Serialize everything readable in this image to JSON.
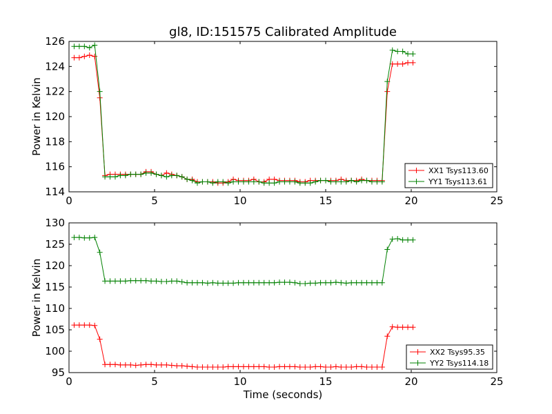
{
  "figure": {
    "title": "gl8, ID:151575 Calibrated Amplitude",
    "xlabel": "Time (seconds)"
  },
  "colors": {
    "XX": "#ff0000",
    "YY": "#008000"
  },
  "chart_data": [
    {
      "type": "line",
      "title": "gl8, ID:151575 Calibrated Amplitude",
      "xlabel": "",
      "ylabel": "Power in Kelvin",
      "xlim": [
        0,
        25
      ],
      "ylim": [
        114,
        126
      ],
      "xticks": [
        0,
        5,
        10,
        15,
        20,
        25
      ],
      "yticks": [
        114,
        116,
        118,
        120,
        122,
        124,
        126
      ],
      "grid": false,
      "legend_position": "lower-right",
      "series": [
        {
          "name": "XX1 Tsys113.60",
          "color": "#ff0000",
          "x": [
            0.3,
            0.6,
            0.9,
            1.2,
            1.5,
            1.8,
            2.1,
            2.4,
            2.7,
            3.0,
            3.3,
            3.6,
            3.9,
            4.2,
            4.5,
            4.8,
            5.1,
            5.4,
            5.7,
            6.0,
            6.3,
            6.6,
            6.9,
            7.2,
            7.5,
            7.8,
            8.1,
            8.4,
            8.7,
            9.0,
            9.3,
            9.6,
            9.9,
            10.2,
            10.5,
            10.8,
            11.1,
            11.4,
            11.7,
            12.0,
            12.3,
            12.6,
            12.9,
            13.2,
            13.5,
            13.8,
            14.1,
            14.4,
            14.7,
            15.0,
            15.3,
            15.6,
            15.9,
            16.2,
            16.5,
            16.8,
            17.1,
            17.4,
            17.7,
            18.0,
            18.3,
            18.6,
            18.9,
            19.2,
            19.5,
            19.8,
            20.1
          ],
          "y": [
            124.7,
            124.7,
            124.8,
            124.9,
            124.8,
            121.5,
            115.3,
            115.4,
            115.4,
            115.4,
            115.4,
            115.4,
            115.4,
            115.4,
            115.6,
            115.6,
            115.4,
            115.3,
            115.5,
            115.4,
            115.3,
            115.2,
            115.0,
            115.0,
            114.8,
            114.8,
            114.8,
            114.8,
            114.7,
            114.7,
            114.8,
            115.0,
            114.9,
            114.9,
            114.9,
            115.0,
            114.8,
            114.8,
            115.0,
            115.0,
            114.9,
            114.9,
            114.9,
            114.9,
            114.8,
            114.8,
            114.9,
            114.9,
            114.9,
            114.9,
            114.9,
            114.9,
            115.0,
            114.9,
            114.9,
            114.9,
            115.0,
            114.9,
            114.9,
            114.9,
            114.9,
            122.0,
            124.2,
            124.2,
            124.2,
            124.3,
            124.3
          ]
        },
        {
          "name": "YY1 Tsys113.61",
          "color": "#008000",
          "x": [
            0.3,
            0.6,
            0.9,
            1.2,
            1.5,
            1.8,
            2.1,
            2.4,
            2.7,
            3.0,
            3.3,
            3.6,
            3.9,
            4.2,
            4.5,
            4.8,
            5.1,
            5.4,
            5.7,
            6.0,
            6.3,
            6.6,
            6.9,
            7.2,
            7.5,
            7.8,
            8.1,
            8.4,
            8.7,
            9.0,
            9.3,
            9.6,
            9.9,
            10.2,
            10.5,
            10.8,
            11.1,
            11.4,
            11.7,
            12.0,
            12.3,
            12.6,
            12.9,
            13.2,
            13.5,
            13.8,
            14.1,
            14.4,
            14.7,
            15.0,
            15.3,
            15.6,
            15.9,
            16.2,
            16.5,
            16.8,
            17.1,
            17.4,
            17.7,
            18.0,
            18.3,
            18.6,
            18.9,
            19.2,
            19.5,
            19.8,
            20.1
          ],
          "y": [
            125.6,
            125.6,
            125.6,
            125.5,
            125.7,
            122.0,
            115.2,
            115.2,
            115.2,
            115.3,
            115.3,
            115.4,
            115.4,
            115.4,
            115.5,
            115.5,
            115.4,
            115.3,
            115.2,
            115.3,
            115.3,
            115.2,
            115.0,
            114.9,
            114.7,
            114.8,
            114.8,
            114.7,
            114.8,
            114.8,
            114.7,
            114.8,
            114.8,
            114.8,
            114.8,
            114.8,
            114.8,
            114.7,
            114.7,
            114.7,
            114.8,
            114.8,
            114.8,
            114.8,
            114.7,
            114.7,
            114.7,
            114.8,
            114.9,
            114.9,
            114.8,
            114.8,
            114.8,
            114.8,
            114.9,
            114.8,
            114.9,
            114.9,
            114.8,
            114.8,
            114.8,
            122.8,
            125.3,
            125.2,
            125.2,
            125.0,
            125.0
          ]
        }
      ]
    },
    {
      "type": "line",
      "title": "",
      "xlabel": "Time (seconds)",
      "ylabel": "Power in Kelvin",
      "xlim": [
        0,
        25
      ],
      "ylim": [
        95,
        130
      ],
      "xticks": [
        0,
        5,
        10,
        15,
        20,
        25
      ],
      "yticks": [
        95,
        100,
        105,
        110,
        115,
        120,
        125,
        130
      ],
      "grid": false,
      "legend_position": "lower-right",
      "series": [
        {
          "name": "XX2 Tsys95.35",
          "color": "#ff0000",
          "x": [
            0.3,
            0.6,
            0.9,
            1.2,
            1.5,
            1.8,
            2.1,
            2.4,
            2.7,
            3.0,
            3.3,
            3.6,
            3.9,
            4.2,
            4.5,
            4.8,
            5.1,
            5.4,
            5.7,
            6.0,
            6.3,
            6.6,
            6.9,
            7.2,
            7.5,
            7.8,
            8.1,
            8.4,
            8.7,
            9.0,
            9.3,
            9.6,
            9.9,
            10.2,
            10.5,
            10.8,
            11.1,
            11.4,
            11.7,
            12.0,
            12.3,
            12.6,
            12.9,
            13.2,
            13.5,
            13.8,
            14.1,
            14.4,
            14.7,
            15.0,
            15.3,
            15.6,
            15.9,
            16.2,
            16.5,
            16.8,
            17.1,
            17.4,
            17.7,
            18.0,
            18.3,
            18.6,
            18.9,
            19.2,
            19.5,
            19.8,
            20.1
          ],
          "y": [
            106.1,
            106.1,
            106.1,
            106.1,
            106.0,
            102.8,
            96.9,
            96.9,
            96.9,
            96.8,
            96.8,
            96.8,
            96.7,
            96.8,
            96.9,
            96.9,
            96.8,
            96.8,
            96.8,
            96.7,
            96.6,
            96.6,
            96.5,
            96.4,
            96.3,
            96.3,
            96.3,
            96.3,
            96.3,
            96.3,
            96.4,
            96.4,
            96.4,
            96.4,
            96.4,
            96.4,
            96.4,
            96.4,
            96.3,
            96.3,
            96.4,
            96.4,
            96.4,
            96.4,
            96.3,
            96.3,
            96.3,
            96.4,
            96.4,
            96.3,
            96.3,
            96.4,
            96.3,
            96.3,
            96.3,
            96.4,
            96.4,
            96.3,
            96.3,
            96.3,
            96.3,
            103.5,
            105.7,
            105.6,
            105.6,
            105.6,
            105.6
          ]
        },
        {
          "name": "YY2 Tsys114.18",
          "color": "#008000",
          "x": [
            0.3,
            0.6,
            0.9,
            1.2,
            1.5,
            1.8,
            2.1,
            2.4,
            2.7,
            3.0,
            3.3,
            3.6,
            3.9,
            4.2,
            4.5,
            4.8,
            5.1,
            5.4,
            5.7,
            6.0,
            6.3,
            6.6,
            6.9,
            7.2,
            7.5,
            7.8,
            8.1,
            8.4,
            8.7,
            9.0,
            9.3,
            9.6,
            9.9,
            10.2,
            10.5,
            10.8,
            11.1,
            11.4,
            11.7,
            12.0,
            12.3,
            12.6,
            12.9,
            13.2,
            13.5,
            13.8,
            14.1,
            14.4,
            14.7,
            15.0,
            15.3,
            15.6,
            15.9,
            16.2,
            16.5,
            16.8,
            17.1,
            17.4,
            17.7,
            18.0,
            18.3,
            18.6,
            18.9,
            19.2,
            19.5,
            19.8,
            20.1
          ],
          "y": [
            126.6,
            126.6,
            126.5,
            126.5,
            126.6,
            123.1,
            116.4,
            116.4,
            116.4,
            116.4,
            116.4,
            116.5,
            116.5,
            116.5,
            116.5,
            116.4,
            116.4,
            116.3,
            116.3,
            116.4,
            116.4,
            116.2,
            116.0,
            116.0,
            116.0,
            116.0,
            115.9,
            116.0,
            115.9,
            115.9,
            115.9,
            115.9,
            116.0,
            116.0,
            116.0,
            116.0,
            116.0,
            116.0,
            116.0,
            116.0,
            116.1,
            116.1,
            116.1,
            116.0,
            115.8,
            115.8,
            115.9,
            115.9,
            116.0,
            116.0,
            116.0,
            116.1,
            116.0,
            115.9,
            116.0,
            116.0,
            116.0,
            116.0,
            116.0,
            116.0,
            116.0,
            123.8,
            126.2,
            126.3,
            126.0,
            126.0,
            126.0
          ]
        }
      ]
    }
  ]
}
